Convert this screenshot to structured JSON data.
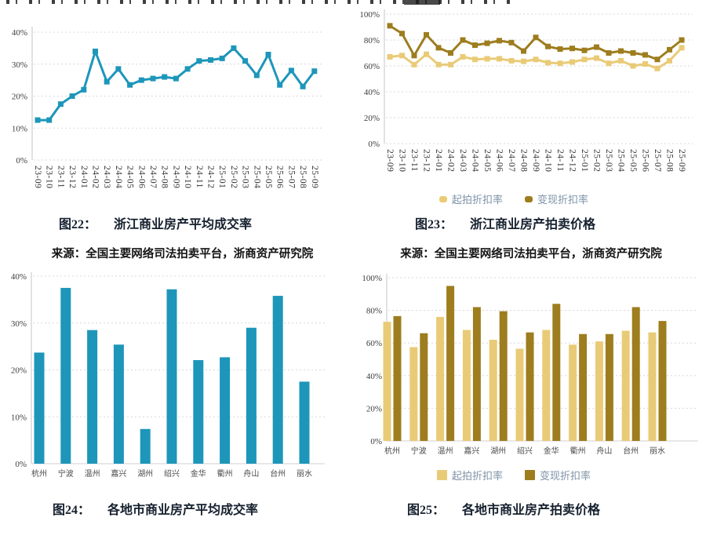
{
  "colors": {
    "teal": "#1d96ba",
    "light_gold": "#e9cb77",
    "dark_gold": "#9d7d1e",
    "legend_text": "#7e93a8",
    "grid": "#d8d8d8"
  },
  "chart_data": [
    {
      "id": "fig22",
      "type": "line",
      "caption_prefix": "图22：",
      "caption": "浙江商业房产平均成交率",
      "source": "来源：全国主要网络司法拍卖平台，浙商资产研究院",
      "x": [
        "23-09",
        "23-10",
        "23-11",
        "23-12",
        "24-01",
        "24-02",
        "24-03",
        "24-04",
        "24-05",
        "24-06",
        "24-07",
        "24-08",
        "24-09",
        "24-10",
        "24-11",
        "24-12",
        "25-01",
        "25-02",
        "25-03",
        "25-04",
        "25-05",
        "25-06",
        "25-07",
        "25-08",
        "25-09"
      ],
      "values": [
        12.5,
        12.5,
        17.5,
        20,
        22,
        34,
        24.5,
        28.5,
        23.5,
        25,
        25.5,
        26,
        25.5,
        28.5,
        31,
        31.3,
        31.8,
        35,
        31,
        26.5,
        33,
        23.5,
        28,
        23,
        27.8
      ],
      "color": "#1d96ba",
      "ylim": [
        0,
        40
      ],
      "yticks": [
        0,
        10,
        20,
        30,
        40
      ],
      "grid": "horizontal-dashed",
      "legend": null
    },
    {
      "id": "fig23",
      "type": "line",
      "caption_prefix": "图23：",
      "caption": "浙江商业房产拍卖价格",
      "source": "来源：全国主要网络司法拍卖平台，浙商资产研究院",
      "x": [
        "23-09",
        "23-10",
        "23-11",
        "23-12",
        "24-01",
        "24-02",
        "24-03",
        "24-04",
        "24-05",
        "24-06",
        "24-07",
        "24-08",
        "24-09",
        "24-10",
        "24-11",
        "24-12",
        "25-01",
        "25-02",
        "25-03",
        "25-04",
        "25-05",
        "25-06",
        "25-07",
        "25-08",
        "25-09"
      ],
      "series": [
        {
          "name": "起拍折扣率",
          "color": "#e9cb77",
          "values": [
            67,
            68,
            61,
            69,
            61,
            61,
            67,
            65,
            65.5,
            65.5,
            64,
            63.5,
            65,
            62.5,
            62,
            63,
            65,
            66,
            62,
            64,
            60,
            61.5,
            58,
            64,
            74
          ]
        },
        {
          "name": "变现折扣率",
          "color": "#9d7d1e",
          "values": [
            91,
            85,
            68,
            84,
            74,
            70,
            80,
            76,
            77.5,
            79.5,
            78,
            71.5,
            82,
            75,
            73,
            73.5,
            72,
            74.5,
            70,
            71.5,
            70,
            68.5,
            65,
            72.5,
            80
          ]
        }
      ],
      "ylim": [
        0,
        100
      ],
      "yticks": [
        0,
        20,
        40,
        60,
        80,
        100
      ],
      "grid": "horizontal-dashed",
      "legend_position": "bottom"
    },
    {
      "id": "fig24",
      "type": "bar",
      "caption_prefix": "图24：",
      "caption": "各地市商业房产平均成交率",
      "categories": [
        "杭州",
        "宁波",
        "温州",
        "嘉兴",
        "湖州",
        "绍兴",
        "金华",
        "衢州",
        "舟山",
        "台州",
        "丽水"
      ],
      "values": [
        23.7,
        37.5,
        28.5,
        25.4,
        7.4,
        37.2,
        22.1,
        22.7,
        29,
        35.8,
        17.5
      ],
      "color": "#1d96ba",
      "ylim": [
        0,
        40
      ],
      "yticks": [
        0,
        10,
        20,
        30,
        40
      ],
      "grid": "horizontal-dashed",
      "legend": null
    },
    {
      "id": "fig25",
      "type": "bar",
      "caption_prefix": "图25：",
      "caption": "各地市商业房产拍卖价格",
      "categories": [
        "杭州",
        "宁波",
        "温州",
        "嘉兴",
        "湖州",
        "绍兴",
        "金华",
        "衢州",
        "舟山",
        "台州",
        "丽水"
      ],
      "series": [
        {
          "name": "起拍折扣率",
          "color": "#e9cb77",
          "values": [
            73,
            57.5,
            76,
            68,
            62,
            56.5,
            68,
            59,
            61,
            67.5,
            66.5
          ]
        },
        {
          "name": "变现折扣率",
          "color": "#9d7d1e",
          "values": [
            76.5,
            66,
            95,
            82,
            79.5,
            66.5,
            84,
            65.5,
            65.5,
            82,
            73.5
          ]
        }
      ],
      "ylim": [
        0,
        100
      ],
      "yticks": [
        0,
        20,
        40,
        60,
        80,
        100
      ],
      "grid": "horizontal-dashed",
      "legend_position": "bottom"
    }
  ]
}
